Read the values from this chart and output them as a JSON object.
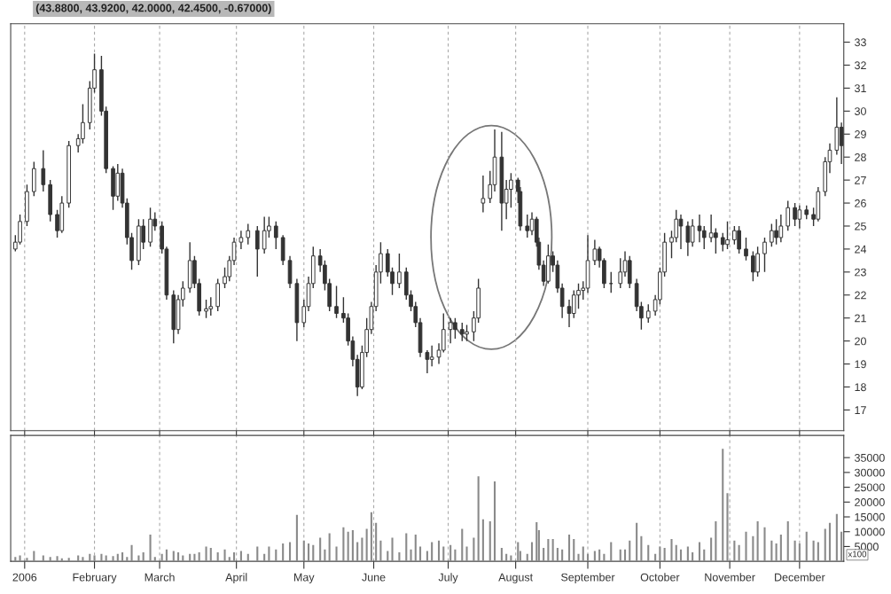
{
  "chart_data": [
    {
      "type": "candlestick",
      "title": "(43.8800, 43.9200, 42.0000, 42.4500, -0.67000)",
      "color": "#333333",
      "grid": "x",
      "tick_labels": "y",
      "x": [
        "2005-12-29",
        "2005-12-31",
        "2006-01-03",
        "2006-01-06",
        "2006-01-10",
        "2006-01-13",
        "2006-01-16",
        "2006-01-18",
        "2006-01-21",
        "2006-01-25",
        "2006-01-27",
        "2006-01-30",
        "2006-02-01",
        "2006-02-04",
        "2006-02-06",
        "2006-02-09",
        "2006-02-11",
        "2006-02-13",
        "2006-02-15",
        "2006-02-17",
        "2006-02-20",
        "2006-02-22",
        "2006-02-25",
        "2006-02-27",
        "2006-03-02",
        "2006-03-04",
        "2006-03-07",
        "2006-03-09",
        "2006-03-11",
        "2006-03-14",
        "2006-03-16",
        "2006-03-18",
        "2006-03-21",
        "2006-03-23",
        "2006-03-26",
        "2006-03-29",
        "2006-03-31",
        "2006-04-02",
        "2006-04-05",
        "2006-04-08",
        "2006-04-12",
        "2006-04-15",
        "2006-04-17",
        "2006-04-20",
        "2006-04-23",
        "2006-04-26",
        "2006-04-29",
        "2006-05-02",
        "2006-05-04",
        "2006-05-06",
        "2006-05-09",
        "2006-05-11",
        "2006-05-13",
        "2006-05-16",
        "2006-05-19",
        "2006-05-21",
        "2006-05-23",
        "2006-05-25",
        "2006-05-27",
        "2006-05-29",
        "2006-05-31",
        "2006-06-02",
        "2006-06-04",
        "2006-06-07",
        "2006-06-09",
        "2006-06-12",
        "2006-06-15",
        "2006-06-17",
        "2006-06-19",
        "2006-06-21",
        "2006-06-24",
        "2006-06-26",
        "2006-06-29",
        "2006-07-01",
        "2006-07-04",
        "2006-07-06",
        "2006-07-09",
        "2006-07-11",
        "2006-07-14",
        "2006-07-16",
        "2006-07-18",
        "2006-07-21",
        "2006-07-23",
        "2006-07-26",
        "2006-07-28",
        "2006-07-30",
        "2006-08-02",
        "2006-08-03",
        "2006-08-06",
        "2006-08-08",
        "2006-08-10",
        "2006-08-11",
        "2006-08-13",
        "2006-08-15",
        "2006-08-17",
        "2006-08-19",
        "2006-08-21",
        "2006-08-24",
        "2006-08-26",
        "2006-08-28",
        "2006-08-30",
        "2006-09-01",
        "2006-09-04",
        "2006-09-06",
        "2006-09-08",
        "2006-09-11",
        "2006-09-15",
        "2006-09-17",
        "2006-09-19",
        "2006-09-22",
        "2006-09-24",
        "2006-09-27",
        "2006-09-30",
        "2006-10-02",
        "2006-10-04",
        "2006-10-07",
        "2006-10-09",
        "2006-10-11",
        "2006-10-14",
        "2006-10-16",
        "2006-10-19",
        "2006-10-21",
        "2006-10-24",
        "2006-10-26",
        "2006-10-29",
        "2006-10-31",
        "2006-11-03",
        "2006-11-05",
        "2006-11-08",
        "2006-11-11",
        "2006-11-13",
        "2006-11-16",
        "2006-11-19",
        "2006-11-21",
        "2006-11-23",
        "2006-11-26",
        "2006-11-29",
        "2006-12-01",
        "2006-12-04",
        "2006-12-07",
        "2006-12-09",
        "2006-12-12",
        "2006-12-14",
        "2006-12-17",
        "2006-12-19"
      ],
      "ohlc": [
        [
          24.0,
          24.6,
          23.9,
          24.3
        ],
        [
          24.3,
          25.5,
          24.2,
          25.2
        ],
        [
          25.2,
          26.8,
          25.0,
          26.5
        ],
        [
          26.5,
          27.8,
          26.3,
          27.5
        ],
        [
          27.5,
          28.3,
          26.5,
          26.8
        ],
        [
          26.8,
          27.0,
          25.2,
          25.5
        ],
        [
          25.5,
          25.7,
          24.5,
          24.8
        ],
        [
          24.8,
          26.3,
          24.7,
          26.0
        ],
        [
          26.0,
          28.7,
          25.8,
          28.5
        ],
        [
          28.5,
          29.0,
          28.2,
          28.8
        ],
        [
          28.8,
          30.3,
          28.6,
          29.5
        ],
        [
          29.5,
          31.3,
          29.2,
          31.0
        ],
        [
          31.0,
          32.5,
          30.8,
          31.8
        ],
        [
          31.8,
          32.4,
          29.8,
          30.0
        ],
        [
          30.0,
          30.2,
          27.3,
          27.5
        ],
        [
          27.5,
          27.6,
          25.7,
          26.3
        ],
        [
          26.3,
          27.7,
          26.1,
          27.3
        ],
        [
          27.3,
          27.5,
          25.8,
          26.0
        ],
        [
          26.0,
          26.2,
          24.2,
          24.5
        ],
        [
          24.5,
          24.7,
          23.1,
          23.5
        ],
        [
          23.5,
          25.3,
          23.3,
          25.0
        ],
        [
          25.0,
          25.3,
          24.0,
          24.3
        ],
        [
          24.3,
          25.8,
          24.1,
          25.3
        ],
        [
          25.3,
          25.6,
          24.8,
          25.0
        ],
        [
          25.0,
          25.2,
          23.8,
          24.0
        ],
        [
          24.0,
          24.1,
          21.8,
          22.0
        ],
        [
          22.0,
          22.2,
          19.9,
          20.5
        ],
        [
          20.5,
          22.0,
          20.3,
          21.8
        ],
        [
          21.8,
          22.6,
          21.5,
          22.3
        ],
        [
          22.3,
          24.3,
          22.1,
          23.5
        ],
        [
          23.5,
          23.7,
          22.3,
          22.5
        ],
        [
          22.5,
          22.7,
          21.1,
          21.3
        ],
        [
          21.3,
          21.8,
          21.0,
          21.4
        ],
        [
          21.4,
          21.9,
          21.1,
          21.5
        ],
        [
          21.5,
          22.7,
          21.3,
          22.5
        ],
        [
          22.5,
          23.2,
          22.3,
          22.8
        ],
        [
          22.8,
          23.7,
          22.6,
          23.5
        ],
        [
          23.5,
          24.5,
          23.3,
          24.3
        ],
        [
          24.3,
          24.8,
          24.0,
          24.5
        ],
        [
          24.5,
          25.1,
          24.2,
          24.8
        ],
        [
          24.8,
          25.0,
          22.8,
          24.0
        ],
        [
          24.0,
          25.4,
          23.8,
          24.8
        ],
        [
          24.8,
          25.4,
          24.5,
          25.0
        ],
        [
          25.0,
          25.2,
          24.0,
          24.5
        ],
        [
          24.5,
          24.6,
          23.3,
          23.5
        ],
        [
          23.5,
          23.7,
          22.3,
          22.5
        ],
        [
          22.5,
          22.7,
          20.0,
          20.8
        ],
        [
          20.8,
          21.8,
          20.6,
          21.5
        ],
        [
          21.5,
          22.8,
          21.3,
          22.5
        ],
        [
          22.5,
          24.1,
          22.3,
          23.7
        ],
        [
          23.7,
          24.0,
          23.0,
          23.3
        ],
        [
          23.3,
          23.5,
          22.2,
          22.5
        ],
        [
          22.5,
          22.7,
          21.3,
          21.5
        ],
        [
          21.5,
          22.4,
          21.0,
          21.2
        ],
        [
          21.2,
          21.9,
          20.8,
          21.0
        ],
        [
          21.0,
          21.2,
          19.8,
          20.0
        ],
        [
          20.0,
          20.2,
          18.9,
          19.2
        ],
        [
          19.2,
          19.4,
          17.6,
          18.0
        ],
        [
          18.0,
          19.8,
          17.9,
          19.5
        ],
        [
          19.5,
          21.0,
          19.3,
          20.5
        ],
        [
          20.5,
          21.7,
          20.3,
          21.5
        ],
        [
          21.5,
          23.3,
          21.3,
          23.0
        ],
        [
          23.0,
          24.3,
          22.5,
          23.8
        ],
        [
          23.8,
          24.0,
          22.8,
          23.0
        ],
        [
          23.0,
          23.2,
          22.0,
          22.5
        ],
        [
          22.5,
          23.8,
          22.3,
          23.0
        ],
        [
          23.0,
          23.2,
          21.8,
          22.0
        ],
        [
          22.0,
          22.2,
          21.3,
          21.5
        ],
        [
          21.5,
          21.7,
          20.6,
          20.8
        ],
        [
          20.8,
          21.0,
          19.3,
          19.5
        ],
        [
          19.5,
          19.6,
          18.6,
          19.2
        ],
        [
          19.2,
          19.8,
          18.9,
          19.3
        ],
        [
          19.3,
          19.9,
          19.0,
          19.6
        ],
        [
          19.6,
          21.2,
          19.5,
          20.5
        ],
        [
          20.5,
          21.0,
          19.9,
          20.8
        ],
        [
          20.8,
          21.0,
          20.1,
          20.5
        ],
        [
          20.5,
          20.8,
          20.0,
          20.3
        ],
        [
          20.3,
          20.7,
          20.0,
          20.4
        ],
        [
          20.4,
          21.3,
          20.0,
          21.0
        ],
        [
          21.0,
          22.7,
          20.8,
          22.3
        ],
        [
          26.0,
          27.2,
          25.6,
          26.2
        ],
        [
          26.2,
          27.4,
          26.0,
          26.8
        ],
        [
          26.8,
          29.2,
          26.5,
          28.0
        ],
        [
          28.0,
          29.1,
          24.8,
          26.0
        ],
        [
          26.0,
          27.0,
          25.3,
          26.6
        ],
        [
          26.6,
          27.3,
          25.8,
          27.0
        ],
        [
          27.0,
          27.1,
          26.0,
          26.5
        ],
        [
          26.5,
          26.7,
          24.8,
          25.0
        ],
        [
          25.0,
          25.5,
          24.5,
          24.8
        ],
        [
          24.8,
          25.6,
          24.6,
          25.3
        ],
        [
          25.3,
          25.4,
          24.1,
          24.3
        ],
        [
          24.3,
          24.5,
          23.1,
          23.3
        ],
        [
          23.3,
          23.5,
          22.4,
          22.6
        ],
        [
          22.6,
          24.2,
          22.5,
          23.7
        ],
        [
          23.7,
          23.9,
          23.0,
          23.3
        ],
        [
          23.3,
          23.5,
          22.1,
          22.3
        ],
        [
          22.3,
          22.5,
          21.0,
          21.5
        ],
        [
          21.5,
          21.8,
          20.6,
          21.2
        ],
        [
          21.2,
          22.2,
          21.0,
          22.0
        ],
        [
          22.0,
          22.5,
          21.4,
          22.2
        ],
        [
          22.2,
          22.6,
          21.8,
          22.3
        ],
        [
          22.3,
          24.6,
          22.1,
          23.5
        ],
        [
          23.5,
          24.4,
          23.3,
          24.0
        ],
        [
          24.0,
          24.1,
          23.2,
          23.5
        ],
        [
          23.5,
          23.6,
          22.3,
          22.5
        ],
        [
          22.5,
          23.0,
          22.1,
          22.5
        ],
        [
          22.5,
          23.6,
          22.3,
          23.0
        ],
        [
          23.0,
          23.9,
          22.8,
          23.5
        ],
        [
          23.5,
          23.7,
          22.3,
          22.5
        ],
        [
          22.5,
          22.7,
          21.3,
          21.5
        ],
        [
          21.5,
          21.7,
          20.5,
          21.0
        ],
        [
          21.0,
          21.6,
          20.8,
          21.3
        ],
        [
          21.3,
          22.0,
          21.1,
          21.8
        ],
        [
          21.8,
          23.2,
          21.6,
          23.0
        ],
        [
          23.0,
          24.7,
          22.8,
          24.3
        ],
        [
          24.3,
          24.8,
          23.6,
          24.5
        ],
        [
          24.5,
          25.7,
          24.3,
          25.3
        ],
        [
          25.3,
          25.5,
          24.0,
          25.0
        ],
        [
          25.0,
          25.2,
          23.7,
          24.3
        ],
        [
          24.3,
          25.3,
          24.1,
          25.0
        ],
        [
          25.0,
          25.5,
          24.3,
          24.8
        ],
        [
          24.8,
          25.0,
          24.0,
          24.5
        ],
        [
          24.5,
          25.5,
          24.3,
          24.7
        ],
        [
          24.7,
          24.9,
          23.8,
          24.5
        ],
        [
          24.5,
          24.7,
          23.9,
          24.2
        ],
        [
          24.2,
          25.2,
          24.0,
          24.4
        ],
        [
          24.4,
          25.0,
          24.2,
          24.8
        ],
        [
          24.8,
          25.0,
          23.8,
          24.0
        ],
        [
          24.0,
          24.5,
          23.5,
          23.7
        ],
        [
          23.7,
          23.9,
          22.6,
          23.0
        ],
        [
          23.0,
          24.1,
          22.8,
          23.8
        ],
        [
          23.8,
          24.5,
          23.0,
          24.3
        ],
        [
          24.3,
          25.1,
          24.1,
          24.8
        ],
        [
          24.8,
          25.3,
          24.2,
          24.5
        ],
        [
          24.5,
          25.5,
          24.3,
          25.0
        ],
        [
          25.0,
          26.1,
          24.8,
          25.8
        ],
        [
          25.8,
          26.0,
          25.0,
          25.3
        ],
        [
          25.3,
          25.9,
          24.9,
          25.7
        ],
        [
          25.7,
          25.9,
          25.3,
          25.5
        ],
        [
          25.5,
          25.8,
          25.0,
          25.3
        ],
        [
          25.3,
          26.7,
          25.2,
          26.5
        ],
        [
          26.5,
          28.0,
          26.3,
          27.8
        ],
        [
          27.8,
          28.6,
          27.3,
          28.3
        ],
        [
          28.3,
          30.6,
          28.1,
          29.3
        ],
        [
          29.3,
          29.5,
          27.7,
          28.5
        ]
      ],
      "xlim": [
        "2005-12-27",
        "2006-12-20"
      ],
      "xticks": [
        {
          "value": "2006-01-02",
          "label": null
        },
        {
          "value": "2006-02-01",
          "label": null
        },
        {
          "value": "2006-03-01",
          "label": null
        },
        {
          "value": "2006-04-03",
          "label": null
        },
        {
          "value": "2006-05-02",
          "label": null
        },
        {
          "value": "2006-06-01",
          "label": null
        },
        {
          "value": "2006-07-03",
          "label": null
        },
        {
          "value": "2006-08-01",
          "label": null
        },
        {
          "value": "2006-09-01",
          "label": null
        },
        {
          "value": "2006-10-02",
          "label": null
        },
        {
          "value": "2006-11-01",
          "label": null
        },
        {
          "value": "2006-12-01",
          "label": null
        }
      ],
      "ylim": [
        16.1,
        33.8
      ],
      "yticks": [
        17,
        18,
        19,
        20,
        21,
        22,
        23,
        24,
        25,
        26,
        27,
        28,
        29,
        30,
        31,
        32,
        33
      ]
    },
    {
      "type": "bar",
      "color": "#8a8a8a",
      "grid": "x",
      "annotations": [
        "x100"
      ],
      "x": [
        "2005-12-29",
        "2005-12-31",
        "2006-01-03",
        "2006-01-06",
        "2006-01-10",
        "2006-01-13",
        "2006-01-16",
        "2006-01-18",
        "2006-01-21",
        "2006-01-25",
        "2006-01-27",
        "2006-01-30",
        "2006-02-01",
        "2006-02-04",
        "2006-02-06",
        "2006-02-09",
        "2006-02-11",
        "2006-02-13",
        "2006-02-15",
        "2006-02-17",
        "2006-02-20",
        "2006-02-22",
        "2006-02-25",
        "2006-02-27",
        "2006-03-02",
        "2006-03-04",
        "2006-03-07",
        "2006-03-09",
        "2006-03-11",
        "2006-03-14",
        "2006-03-16",
        "2006-03-18",
        "2006-03-21",
        "2006-03-23",
        "2006-03-26",
        "2006-03-29",
        "2006-03-31",
        "2006-04-02",
        "2006-04-05",
        "2006-04-08",
        "2006-04-12",
        "2006-04-15",
        "2006-04-17",
        "2006-04-20",
        "2006-04-23",
        "2006-04-26",
        "2006-04-29",
        "2006-05-02",
        "2006-05-04",
        "2006-05-06",
        "2006-05-09",
        "2006-05-11",
        "2006-05-13",
        "2006-05-16",
        "2006-05-19",
        "2006-05-21",
        "2006-05-23",
        "2006-05-25",
        "2006-05-27",
        "2006-05-29",
        "2006-05-31",
        "2006-06-02",
        "2006-06-04",
        "2006-06-07",
        "2006-06-09",
        "2006-06-12",
        "2006-06-15",
        "2006-06-17",
        "2006-06-19",
        "2006-06-21",
        "2006-06-24",
        "2006-06-26",
        "2006-06-29",
        "2006-07-01",
        "2006-07-04",
        "2006-07-06",
        "2006-07-09",
        "2006-07-11",
        "2006-07-14",
        "2006-07-16",
        "2006-07-18",
        "2006-07-21",
        "2006-07-23",
        "2006-07-26",
        "2006-07-28",
        "2006-07-30",
        "2006-08-02",
        "2006-08-03",
        "2006-08-06",
        "2006-08-08",
        "2006-08-10",
        "2006-08-11",
        "2006-08-13",
        "2006-08-15",
        "2006-08-17",
        "2006-08-19",
        "2006-08-21",
        "2006-08-24",
        "2006-08-26",
        "2006-08-28",
        "2006-08-30",
        "2006-09-01",
        "2006-09-04",
        "2006-09-06",
        "2006-09-08",
        "2006-09-11",
        "2006-09-15",
        "2006-09-17",
        "2006-09-19",
        "2006-09-22",
        "2006-09-24",
        "2006-09-27",
        "2006-09-30",
        "2006-10-02",
        "2006-10-04",
        "2006-10-07",
        "2006-10-09",
        "2006-10-11",
        "2006-10-14",
        "2006-10-16",
        "2006-10-19",
        "2006-10-21",
        "2006-10-24",
        "2006-10-26",
        "2006-10-29",
        "2006-10-31",
        "2006-11-03",
        "2006-11-05",
        "2006-11-08",
        "2006-11-11",
        "2006-11-13",
        "2006-11-16",
        "2006-11-19",
        "2006-11-21",
        "2006-11-23",
        "2006-11-26",
        "2006-11-29",
        "2006-12-01",
        "2006-12-04",
        "2006-12-07",
        "2006-12-09",
        "2006-12-12",
        "2006-12-14",
        "2006-12-17",
        "2006-12-19"
      ],
      "values": [
        1500,
        2000,
        1200,
        3500,
        2000,
        1500,
        1800,
        1000,
        1200,
        2000,
        1500,
        2500,
        2000,
        2500,
        2000,
        1800,
        2500,
        3000,
        1500,
        5500,
        2000,
        3000,
        9000,
        1500,
        2500,
        4000,
        3500,
        3000,
        2000,
        2500,
        2500,
        3000,
        5000,
        4500,
        3000,
        4000,
        1500,
        3000,
        3500,
        2500,
        5000,
        2500,
        5000,
        4000,
        6000,
        6500,
        15700,
        7000,
        6000,
        5500,
        8000,
        4000,
        9500,
        5000,
        11500,
        10000,
        10500,
        6500,
        8000,
        11000,
        16600,
        13000,
        7000,
        3500,
        8000,
        3000,
        9500,
        4000,
        9000,
        5000,
        3500,
        6500,
        7000,
        5000,
        5500,
        4000,
        11000,
        5000,
        8000,
        28700,
        14200,
        13500,
        27000,
        4500,
        2500,
        2000,
        6500,
        3500,
        2500,
        6500,
        13200,
        10500,
        4500,
        7500,
        7500,
        4500,
        4000,
        9000,
        7500,
        2500,
        5000,
        2500,
        3500,
        4000,
        2500,
        6500,
        4000,
        4000,
        7000,
        13000,
        8500,
        5500,
        2500,
        5000,
        4500,
        7500,
        5500,
        4000,
        5000,
        3000,
        6500,
        4000,
        8000,
        13500,
        38000,
        23000,
        7000,
        5500,
        10000,
        8500,
        13500,
        11500,
        7000,
        6000,
        9000,
        13500,
        7000,
        6000,
        10000,
        7000,
        6500,
        11000,
        13000,
        16000,
        10000
      ],
      "xlim": [
        "2005-12-27",
        "2006-12-20"
      ],
      "xticks": [
        {
          "value": "2006-01-02",
          "label": "2006"
        },
        {
          "value": "2006-02-01",
          "label": "February"
        },
        {
          "value": "2006-03-01",
          "label": "March"
        },
        {
          "value": "2006-04-03",
          "label": "April"
        },
        {
          "value": "2006-05-02",
          "label": "May"
        },
        {
          "value": "2006-06-01",
          "label": "June"
        },
        {
          "value": "2006-07-03",
          "label": "July"
        },
        {
          "value": "2006-08-01",
          "label": "August"
        },
        {
          "value": "2006-09-01",
          "label": "September"
        },
        {
          "value": "2006-10-02",
          "label": "October"
        },
        {
          "value": "2006-11-01",
          "label": "November"
        },
        {
          "value": "2006-12-01",
          "label": "December"
        }
      ],
      "ylim": [
        0,
        42500
      ],
      "yticks": [
        5000,
        10000,
        15000,
        20000,
        25000,
        30000,
        35000
      ]
    }
  ]
}
